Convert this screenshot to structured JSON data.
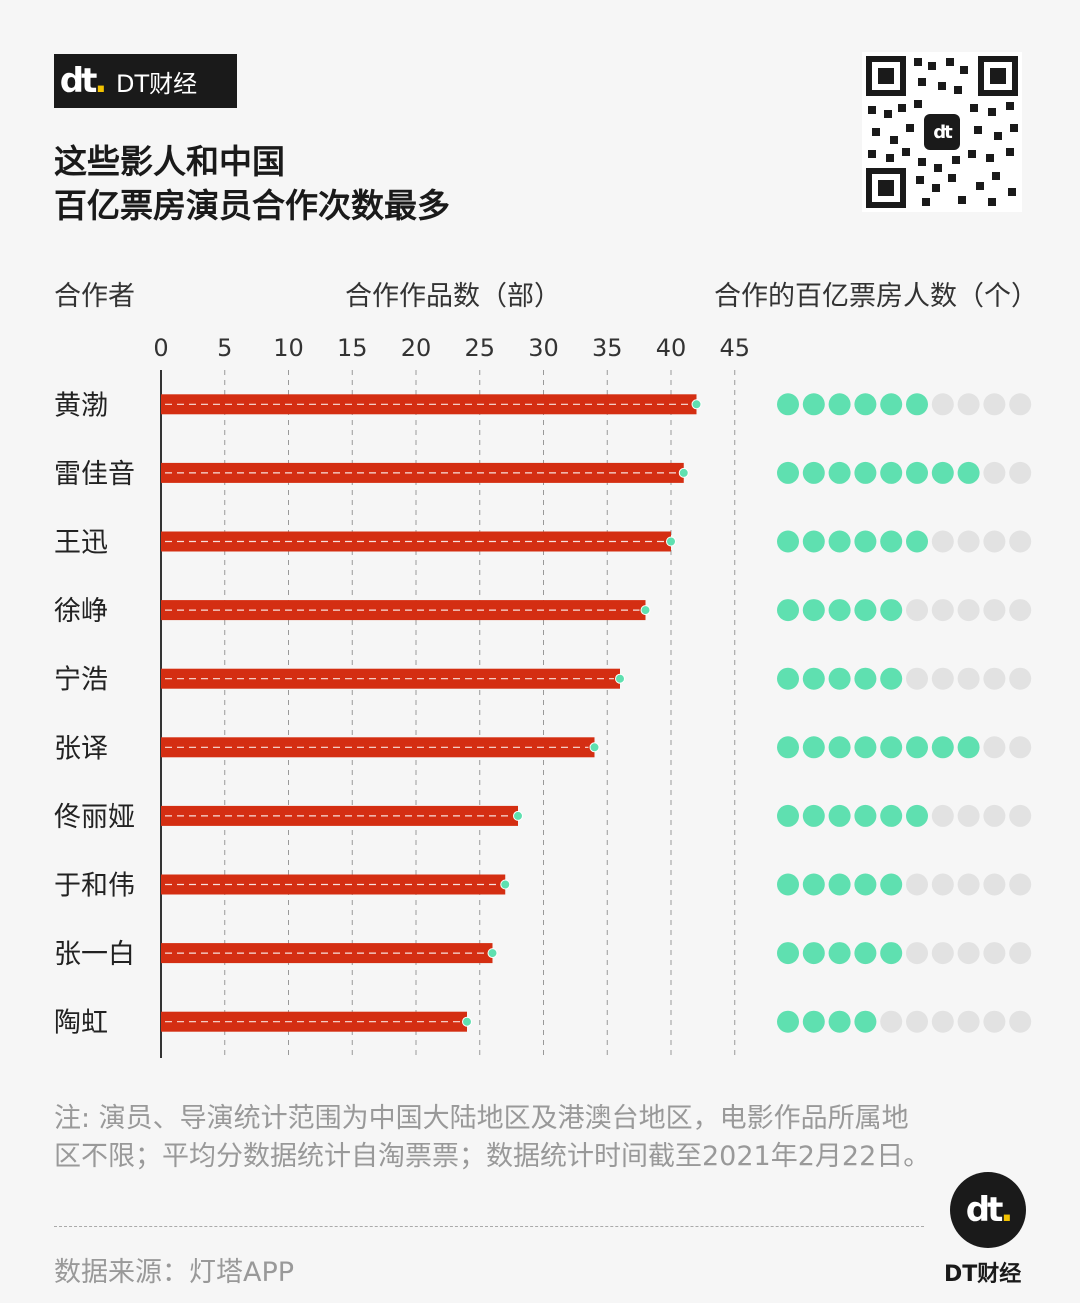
{
  "brand": {
    "logo_text": "DT财经",
    "logo_mark": "dt",
    "footer_text": "DT财经"
  },
  "title_line1": "这些影人和中国",
  "title_line2": "百亿票房演员合作次数最多",
  "headers": {
    "col1": "合作者",
    "col2": "合作作品数（部）",
    "col3": "合作的百亿票房人数（个）"
  },
  "note": "注: 演员、导演统计范围为中国大陆地区及港澳台地区，电影作品所属地区不限；平均分数据统计自淘票票；数据统计时间截至2021年2月22日。",
  "source": "数据来源：灯塔APP",
  "colors": {
    "bar": "#d42e12",
    "dot_on": "#5fe0b0",
    "dot_off": "#e2e2e2",
    "grid": "#999999"
  },
  "chart_data": {
    "type": "bar",
    "orientation": "horizontal",
    "categories": [
      "黄渤",
      "雷佳音",
      "王迅",
      "徐峥",
      "宁浩",
      "张译",
      "佟丽娅",
      "于和伟",
      "张一白",
      "陶虹"
    ],
    "values": [
      42,
      41,
      40,
      38,
      36,
      34,
      28,
      27,
      26,
      24
    ],
    "xlim": [
      0,
      45
    ],
    "xticks": [
      0,
      5,
      10,
      15,
      20,
      25,
      30,
      35,
      40,
      45
    ],
    "grid": true,
    "dots_total": 10,
    "dots_filled": [
      6,
      8,
      6,
      5,
      5,
      8,
      6,
      5,
      5,
      4
    ]
  }
}
